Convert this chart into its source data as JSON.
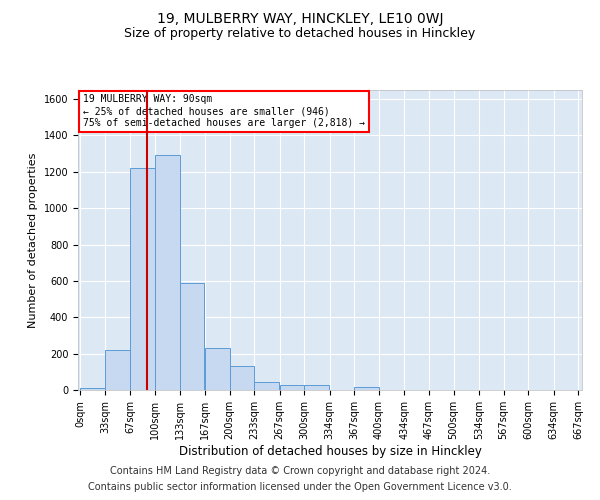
{
  "title": "19, MULBERRY WAY, HINCKLEY, LE10 0WJ",
  "subtitle": "Size of property relative to detached houses in Hinckley",
  "xlabel": "Distribution of detached houses by size in Hinckley",
  "ylabel": "Number of detached properties",
  "footnote1": "Contains HM Land Registry data © Crown copyright and database right 2024.",
  "footnote2": "Contains public sector information licensed under the Open Government Licence v3.0.",
  "annotation_line1": "19 MULBERRY WAY: 90sqm",
  "annotation_line2": "← 25% of detached houses are smaller (946)",
  "annotation_line3": "75% of semi-detached houses are larger (2,818) →",
  "bar_color": "#c6d9f0",
  "bar_edge_color": "#5b9bd5",
  "vline_color": "#cc0000",
  "vline_x": 90,
  "bin_width": 33,
  "bin_starts": [
    0,
    33,
    67,
    100,
    133,
    167,
    200,
    233,
    267,
    300,
    334,
    367,
    400,
    434,
    467,
    500,
    534,
    567,
    600,
    634
  ],
  "bar_heights": [
    10,
    220,
    1220,
    1290,
    590,
    230,
    130,
    45,
    30,
    25,
    0,
    15,
    0,
    0,
    0,
    0,
    0,
    0,
    0,
    0
  ],
  "ylim": [
    0,
    1650
  ],
  "yticks": [
    0,
    200,
    400,
    600,
    800,
    1000,
    1200,
    1400,
    1600
  ],
  "background_color": "#ffffff",
  "plot_bg_color": "#dde8f5",
  "grid_color": "#ffffff",
  "title_fontsize": 10,
  "subtitle_fontsize": 9,
  "footnote_fontsize": 7,
  "tick_fontsize": 7,
  "ylabel_fontsize": 8,
  "xlabel_fontsize": 8.5
}
